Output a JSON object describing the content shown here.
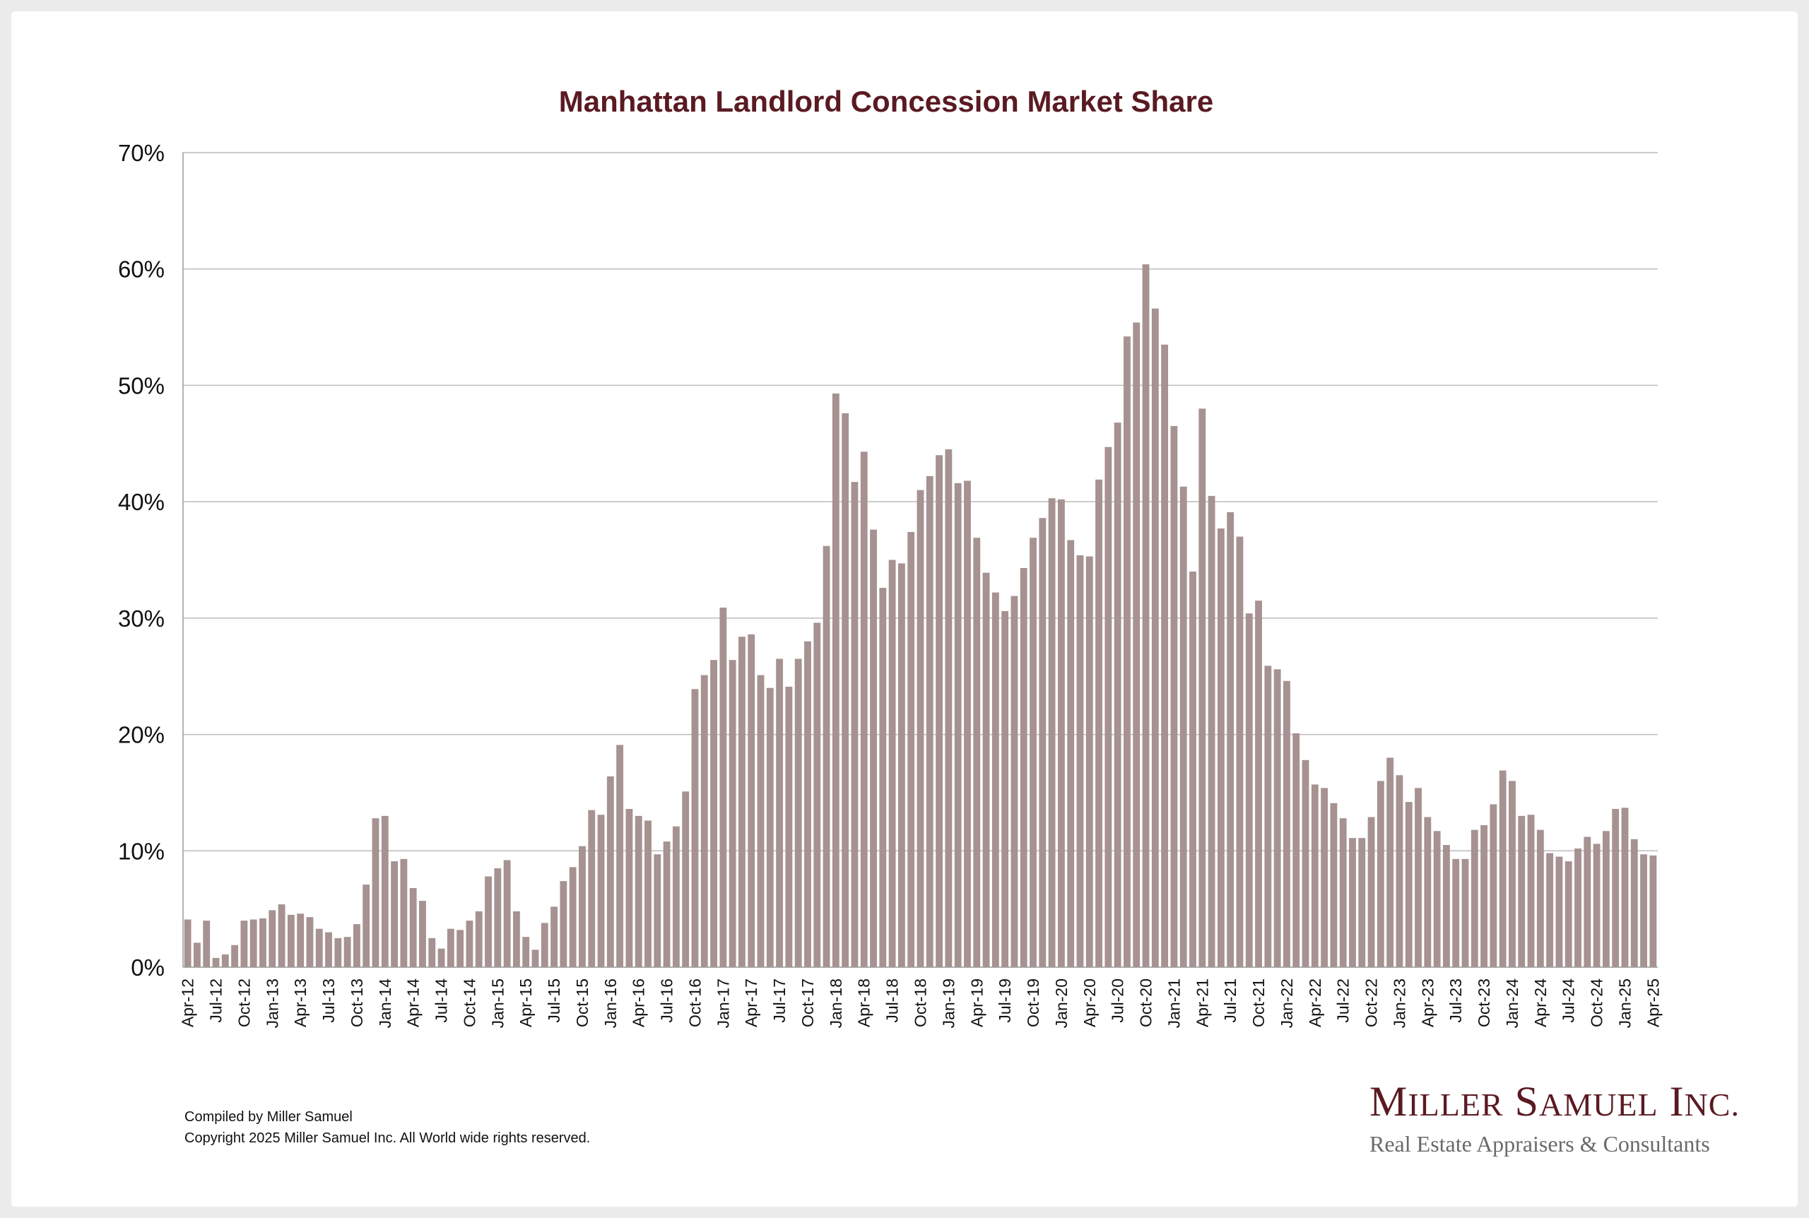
{
  "chart_data": {
    "type": "bar",
    "title": "Manhattan Landlord Concession Market Share",
    "xlabel": "",
    "ylabel": "",
    "ylim": [
      0,
      70
    ],
    "yticks": [
      "0%",
      "10%",
      "20%",
      "30%",
      "40%",
      "50%",
      "60%",
      "70%"
    ],
    "grid": true,
    "legend": "none",
    "bar_color": "#a69291",
    "categories": [
      "Apr-12",
      "May-12",
      "Jun-12",
      "Jul-12",
      "Aug-12",
      "Sep-12",
      "Oct-12",
      "Nov-12",
      "Dec-12",
      "Jan-13",
      "Feb-13",
      "Mar-13",
      "Apr-13",
      "May-13",
      "Jun-13",
      "Jul-13",
      "Aug-13",
      "Sep-13",
      "Oct-13",
      "Nov-13",
      "Dec-13",
      "Jan-14",
      "Feb-14",
      "Mar-14",
      "Apr-14",
      "May-14",
      "Jun-14",
      "Jul-14",
      "Aug-14",
      "Sep-14",
      "Oct-14",
      "Nov-14",
      "Dec-14",
      "Jan-15",
      "Feb-15",
      "Mar-15",
      "Apr-15",
      "May-15",
      "Jun-15",
      "Jul-15",
      "Aug-15",
      "Sep-15",
      "Oct-15",
      "Nov-15",
      "Dec-15",
      "Jan-16",
      "Feb-16",
      "Mar-16",
      "Apr-16",
      "May-16",
      "Jun-16",
      "Jul-16",
      "Aug-16",
      "Sep-16",
      "Oct-16",
      "Nov-16",
      "Dec-16",
      "Jan-17",
      "Feb-17",
      "Mar-17",
      "Apr-17",
      "May-17",
      "Jun-17",
      "Jul-17",
      "Aug-17",
      "Sep-17",
      "Oct-17",
      "Nov-17",
      "Dec-17",
      "Jan-18",
      "Feb-18",
      "Mar-18",
      "Apr-18",
      "May-18",
      "Jun-18",
      "Jul-18",
      "Aug-18",
      "Sep-18",
      "Oct-18",
      "Nov-18",
      "Dec-18",
      "Jan-19",
      "Feb-19",
      "Mar-19",
      "Apr-19",
      "May-19",
      "Jun-19",
      "Jul-19",
      "Aug-19",
      "Sep-19",
      "Oct-19",
      "Nov-19",
      "Dec-19",
      "Jan-20",
      "Feb-20",
      "Mar-20",
      "Apr-20",
      "May-20",
      "Jun-20",
      "Jul-20",
      "Aug-20",
      "Sep-20",
      "Oct-20",
      "Nov-20",
      "Dec-20",
      "Jan-21",
      "Feb-21",
      "Mar-21",
      "Apr-21",
      "May-21",
      "Jun-21",
      "Jul-21",
      "Aug-21",
      "Sep-21",
      "Oct-21",
      "Nov-21",
      "Dec-21",
      "Jan-22",
      "Feb-22",
      "Mar-22",
      "Apr-22",
      "May-22",
      "Jun-22",
      "Jul-22",
      "Aug-22",
      "Sep-22",
      "Oct-22",
      "Nov-22",
      "Dec-22",
      "Jan-23",
      "Feb-23",
      "Mar-23",
      "Apr-23",
      "May-23",
      "Jun-23",
      "Jul-23",
      "Aug-23",
      "Sep-23",
      "Oct-23",
      "Nov-23",
      "Dec-23",
      "Jan-24",
      "Feb-24",
      "Mar-24",
      "Apr-24",
      "May-24",
      "Jun-24",
      "Jul-24",
      "Aug-24",
      "Sep-24",
      "Oct-24",
      "Nov-24",
      "Dec-24",
      "Jan-25",
      "Feb-25",
      "Mar-25",
      "Apr-25"
    ],
    "tick_labels": [
      "Apr-12",
      "Jul-12",
      "Oct-12",
      "Jan-13",
      "Apr-13",
      "Jul-13",
      "Oct-13",
      "Jan-14",
      "Apr-14",
      "Jul-14",
      "Oct-14",
      "Jan-15",
      "Apr-15",
      "Jul-15",
      "Oct-15",
      "Jan-16",
      "Apr-16",
      "Jul-16",
      "Oct-16",
      "Jan-17",
      "Apr-17",
      "Jul-17",
      "Oct-17",
      "Jan-18",
      "Apr-18",
      "Jul-18",
      "Oct-18",
      "Jan-19",
      "Apr-19",
      "Jul-19",
      "Oct-19",
      "Jan-20",
      "Apr-20",
      "Jul-20",
      "Oct-20",
      "Jan-21",
      "Apr-21",
      "Jul-21",
      "Oct-21",
      "Jan-22",
      "Apr-22",
      "Jul-22",
      "Oct-22",
      "Jan-23",
      "Apr-23",
      "Jul-23",
      "Oct-23",
      "Jan-24",
      "Apr-24",
      "Jul-24",
      "Oct-24",
      "Jan-25",
      "Apr-25"
    ],
    "values": [
      4.1,
      2.1,
      4.0,
      0.8,
      1.1,
      1.9,
      4.0,
      4.1,
      4.2,
      4.9,
      5.4,
      4.5,
      4.6,
      4.3,
      3.3,
      3.0,
      2.5,
      2.6,
      3.7,
      7.1,
      12.8,
      13.0,
      9.1,
      9.3,
      6.8,
      5.7,
      2.5,
      1.6,
      3.3,
      3.2,
      4.0,
      4.8,
      7.8,
      8.5,
      9.2,
      4.8,
      2.6,
      1.5,
      3.8,
      5.2,
      7.4,
      8.6,
      10.4,
      13.5,
      13.1,
      16.4,
      19.1,
      13.6,
      13.0,
      12.6,
      9.7,
      10.8,
      12.1,
      15.1,
      23.9,
      25.1,
      26.4,
      30.9,
      26.4,
      28.4,
      28.6,
      25.1,
      24.0,
      26.5,
      24.1,
      26.5,
      28.0,
      29.6,
      36.2,
      49.3,
      47.6,
      41.7,
      44.3,
      37.6,
      32.6,
      35.0,
      34.7,
      37.4,
      41.0,
      42.2,
      44.0,
      44.5,
      41.6,
      41.8,
      36.9,
      33.9,
      32.2,
      30.6,
      31.9,
      34.3,
      36.9,
      38.6,
      40.3,
      40.2,
      36.7,
      35.4,
      35.3,
      41.9,
      44.7,
      46.8,
      54.2,
      55.4,
      60.4,
      56.6,
      53.5,
      46.5,
      41.3,
      34.0,
      48.0,
      40.5,
      37.7,
      39.1,
      37.0,
      30.4,
      31.5,
      25.9,
      25.6,
      24.6,
      20.1,
      17.8,
      15.7,
      15.4,
      14.1,
      12.8,
      11.1,
      11.1,
      12.9,
      16.0,
      18.0,
      16.5,
      14.2,
      15.4,
      12.9,
      11.7,
      10.5,
      9.3,
      9.3,
      11.8,
      12.2,
      14.0,
      16.9,
      16.0,
      13.0,
      13.1,
      11.8,
      9.8,
      9.5,
      9.1,
      10.2,
      11.2,
      10.6,
      11.7,
      13.6,
      13.7,
      11.0,
      9.7,
      9.6
    ]
  },
  "footer": {
    "compiled": "Compiled by Miller Samuel",
    "copyright": "Copyright 2025 Miller Samuel Inc.  All World wide rights reserved."
  },
  "logo": {
    "name_initial_1": "M",
    "name_rest_1": "ILLER",
    "name_initial_2": "S",
    "name_rest_2": "AMUEL",
    "name_initial_3": "I",
    "name_rest_3": "NC.",
    "tagline": "Real Estate Appraisers & Consultants",
    "color": "#5a1a22"
  }
}
